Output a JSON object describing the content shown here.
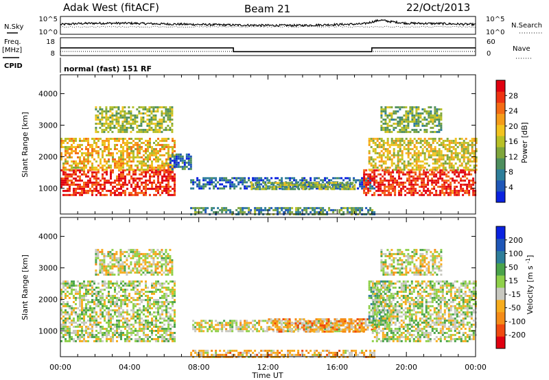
{
  "header": {
    "station": "Adak West (fitACF)",
    "beam": "Beam 21",
    "date": "22/Oct/2013"
  },
  "left_labels": {
    "nsky": "N.Sky",
    "freq": "Freq.",
    "freq_unit": "[MHz]",
    "cpid": "CPID"
  },
  "right_labels": {
    "nsearch": "N.Search",
    "nave": "Nave"
  },
  "cpid_text": "normal (fast) 151 RF",
  "chart_data": [
    {
      "type": "line",
      "panel": "noise",
      "y_left_ticks": [
        "10^5",
        "10^0"
      ],
      "y_right_ticks": [
        "10^5",
        "10^0"
      ],
      "x_range_hours": [
        0,
        24
      ],
      "series": [
        {
          "name": "N.Sky",
          "x": [
            0,
            1,
            2,
            4,
            6,
            8,
            10,
            12,
            14,
            16,
            17.5,
            18.5,
            19,
            20,
            22,
            24
          ],
          "y_frac": [
            0.55,
            0.6,
            0.62,
            0.62,
            0.58,
            0.55,
            0.52,
            0.5,
            0.5,
            0.55,
            0.58,
            0.8,
            0.72,
            0.62,
            0.6,
            0.55
          ]
        }
      ]
    },
    {
      "type": "line",
      "panel": "frequency",
      "y_left_ticks": [
        "18",
        "8"
      ],
      "y_right_ticks": [
        "60",
        "0"
      ],
      "x_range_hours": [
        0,
        24
      ],
      "series": [
        {
          "name": "Freq.",
          "x": [
            0,
            10,
            10,
            18,
            18,
            24
          ],
          "y": [
            12.3,
            12.3,
            10.2,
            10.2,
            12.3,
            12.3
          ]
        }
      ]
    },
    {
      "type": "heatmap",
      "panel": "power",
      "ylabel": "Slant Range [km]",
      "yticks": [
        1000,
        2000,
        3000,
        4000
      ],
      "ylim": [
        180,
        4600
      ],
      "xlim": [
        0,
        24
      ],
      "colorbar_label": "Power [dB]",
      "colorbar_ticks": [
        4,
        8,
        12,
        16,
        20,
        24,
        28
      ],
      "colorbar_range": [
        0,
        32
      ],
      "colors": [
        "#0a22e0",
        "#1f57b8",
        "#2e7e9a",
        "#4e8f5e",
        "#7fa63c",
        "#b8c026",
        "#f2c31f",
        "#f59c1a",
        "#f46b14",
        "#ee3312",
        "#e00010"
      ],
      "regions": [
        {
          "t": [
            0,
            6.6
          ],
          "r": [
            800,
            1600
          ],
          "level": 0.9
        },
        {
          "t": [
            0,
            6.6
          ],
          "r": [
            1600,
            2600
          ],
          "level": 0.6
        },
        {
          "t": [
            2,
            6.5
          ],
          "r": [
            2800,
            3600
          ],
          "level": 0.45
        },
        {
          "t": [
            6.3,
            7.5
          ],
          "r": [
            1600,
            2100
          ],
          "level": 0.2
        },
        {
          "t": [
            7.5,
            18.2
          ],
          "r": [
            1000,
            1350
          ],
          "level": 0.18
        },
        {
          "t": [
            11,
            17
          ],
          "r": [
            1000,
            1200
          ],
          "level": 0.42
        },
        {
          "t": [
            7.5,
            18.2
          ],
          "r": [
            200,
            400
          ],
          "level": 0.3
        },
        {
          "t": [
            17.5,
            24
          ],
          "r": [
            800,
            1600
          ],
          "level": 0.9
        },
        {
          "t": [
            17.8,
            24
          ],
          "r": [
            1600,
            2600
          ],
          "level": 0.55
        },
        {
          "t": [
            18.5,
            22
          ],
          "r": [
            2800,
            3600
          ],
          "level": 0.4
        }
      ]
    },
    {
      "type": "heatmap",
      "panel": "velocity",
      "ylabel": "Slant Range [km]",
      "xlabel": "Time UT",
      "xticks": [
        "00:00",
        "04:00",
        "08:00",
        "12:00",
        "16:00",
        "20:00",
        "00:00"
      ],
      "xtick_hours": [
        0,
        4,
        8,
        12,
        16,
        20,
        24
      ],
      "yticks": [
        1000,
        2000,
        3000,
        4000
      ],
      "ylim": [
        180,
        4600
      ],
      "xlim": [
        0,
        24
      ],
      "colorbar_label": "Velocity [m s^-1]",
      "colorbar_ticks": [
        200,
        100,
        50,
        15,
        -15,
        -50,
        -100,
        -200
      ],
      "colors": [
        "#e00010",
        "#f04a10",
        "#f58c18",
        "#f7ad1e",
        "#c8c8c0",
        "#8fd04a",
        "#4aa34a",
        "#2e7e9a",
        "#1f57b8",
        "#0a22e0"
      ],
      "regions": [
        {
          "t": [
            0,
            6.6
          ],
          "r": [
            700,
            2600
          ],
          "level": 0.5
        },
        {
          "t": [
            2,
            6.5
          ],
          "r": [
            2800,
            3600
          ],
          "level": 0.45
        },
        {
          "t": [
            7.5,
            17.5
          ],
          "r": [
            1000,
            1350
          ],
          "level": 0.45
        },
        {
          "t": [
            12,
            18.2
          ],
          "r": [
            1000,
            1400
          ],
          "level": 0.32
        },
        {
          "t": [
            7.5,
            18.2
          ],
          "r": [
            200,
            400
          ],
          "level": 0.35
        },
        {
          "t": [
            17.8,
            19
          ],
          "r": [
            1200,
            2600
          ],
          "level": 0.62
        },
        {
          "t": [
            18,
            24
          ],
          "r": [
            700,
            2600
          ],
          "level": 0.5
        },
        {
          "t": [
            18.5,
            22
          ],
          "r": [
            2800,
            3600
          ],
          "level": 0.45
        }
      ]
    }
  ]
}
